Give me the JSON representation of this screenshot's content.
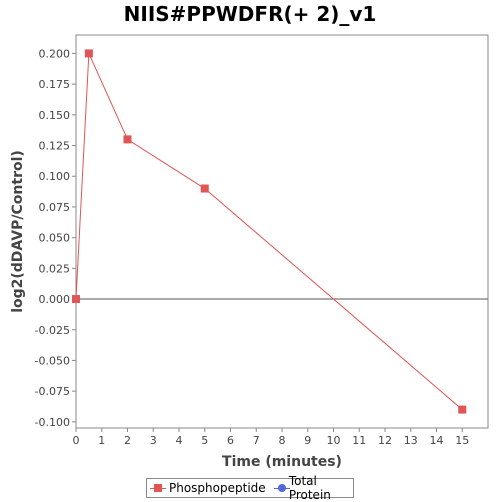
{
  "chart_data": {
    "type": "line",
    "title": "NIIS#PPWDFR(+ 2)_v1",
    "xlabel": "Time (minutes)",
    "ylabel": "log2(dDAVP/Control)",
    "xlim": [
      0,
      16
    ],
    "ylim": [
      -0.105,
      0.215
    ],
    "x_ticks": [
      "0",
      "1",
      "2",
      "3",
      "4",
      "5",
      "6",
      "7",
      "8",
      "9",
      "10",
      "11",
      "12",
      "13",
      "14",
      "15"
    ],
    "y_ticks": [
      "0.200",
      "0.175",
      "0.150",
      "0.125",
      "0.100",
      "0.075",
      "0.050",
      "0.025",
      "0.000",
      "-0.025",
      "-0.050",
      "-0.075",
      "-0.100"
    ],
    "grid": false,
    "zero_line": true,
    "legend_position": "bottom",
    "series": [
      {
        "name": "Phosphopeptide",
        "color": "#e05555",
        "marker": "square",
        "x": [
          0,
          0.5,
          2,
          5,
          15
        ],
        "y": [
          0.0,
          0.2,
          0.13,
          0.09,
          -0.09
        ]
      },
      {
        "name": "Total Protein",
        "color": "#5566dd",
        "marker": "circle",
        "x": [],
        "y": []
      }
    ]
  }
}
